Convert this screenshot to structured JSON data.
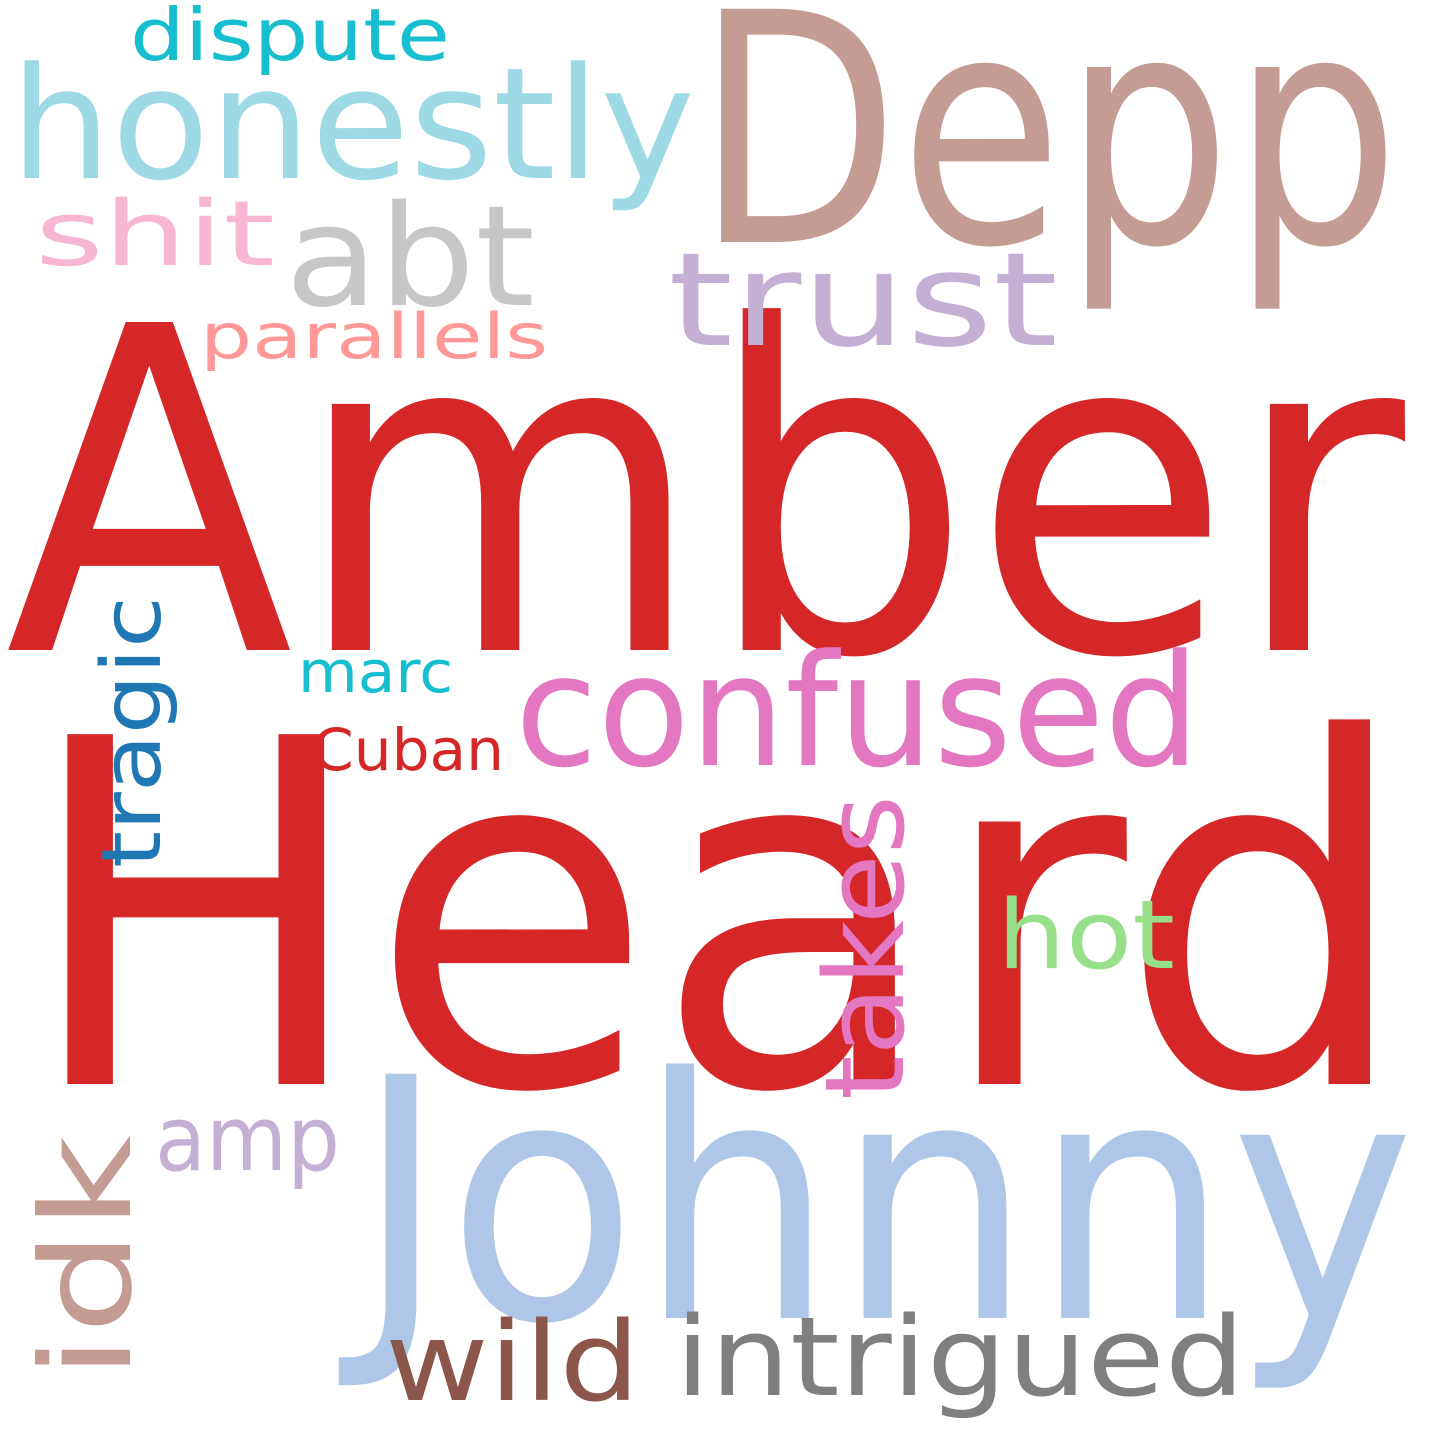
{
  "words": [
    {
      "id": "heard",
      "text": "Heard",
      "color": "#d62728",
      "weight": 1.0
    },
    {
      "id": "amber",
      "text": "Amber",
      "color": "#d62728",
      "weight": 0.95
    },
    {
      "id": "johnny",
      "text": "Johnny",
      "color": "#aec7e8",
      "weight": 0.72
    },
    {
      "id": "depp",
      "text": "Depp",
      "color": "#c49c94",
      "weight": 0.7
    },
    {
      "id": "honestly",
      "text": "honestly",
      "color": "#9edae5",
      "weight": 0.36
    },
    {
      "id": "confused",
      "text": "confused",
      "color": "#e377c2",
      "weight": 0.34
    },
    {
      "id": "abt",
      "text": "abt",
      "color": "#c7c7c7",
      "weight": 0.3
    },
    {
      "id": "trust",
      "text": "trust",
      "color": "#c5b0d5",
      "weight": 0.3
    },
    {
      "id": "takes",
      "text": "takes",
      "color": "#e377c2",
      "weight": 0.27
    },
    {
      "id": "idk",
      "text": "idk",
      "color": "#c49c94",
      "weight": 0.27
    },
    {
      "id": "intrigued",
      "text": "intrigued",
      "color": "#7f7f7f",
      "weight": 0.25
    },
    {
      "id": "wild",
      "text": "wild",
      "color": "#8c564b",
      "weight": 0.25
    },
    {
      "id": "hot",
      "text": "hot",
      "color": "#98df8a",
      "weight": 0.22
    },
    {
      "id": "amp",
      "text": "amp",
      "color": "#c5b0d5",
      "weight": 0.21
    },
    {
      "id": "shit",
      "text": "shit",
      "color": "#f7b6d2",
      "weight": 0.21
    },
    {
      "id": "tragic",
      "text": "tragic",
      "color": "#1f77b4",
      "weight": 0.2
    },
    {
      "id": "dispute",
      "text": "dispute",
      "color": "#17becf",
      "weight": 0.17
    },
    {
      "id": "parallels",
      "text": "parallels",
      "color": "#ff9896",
      "weight": 0.15
    },
    {
      "id": "cuban",
      "text": "Cuban",
      "color": "#d62728",
      "weight": 0.14
    },
    {
      "id": "marc",
      "text": "marc",
      "color": "#17becf",
      "weight": 0.13
    }
  ]
}
